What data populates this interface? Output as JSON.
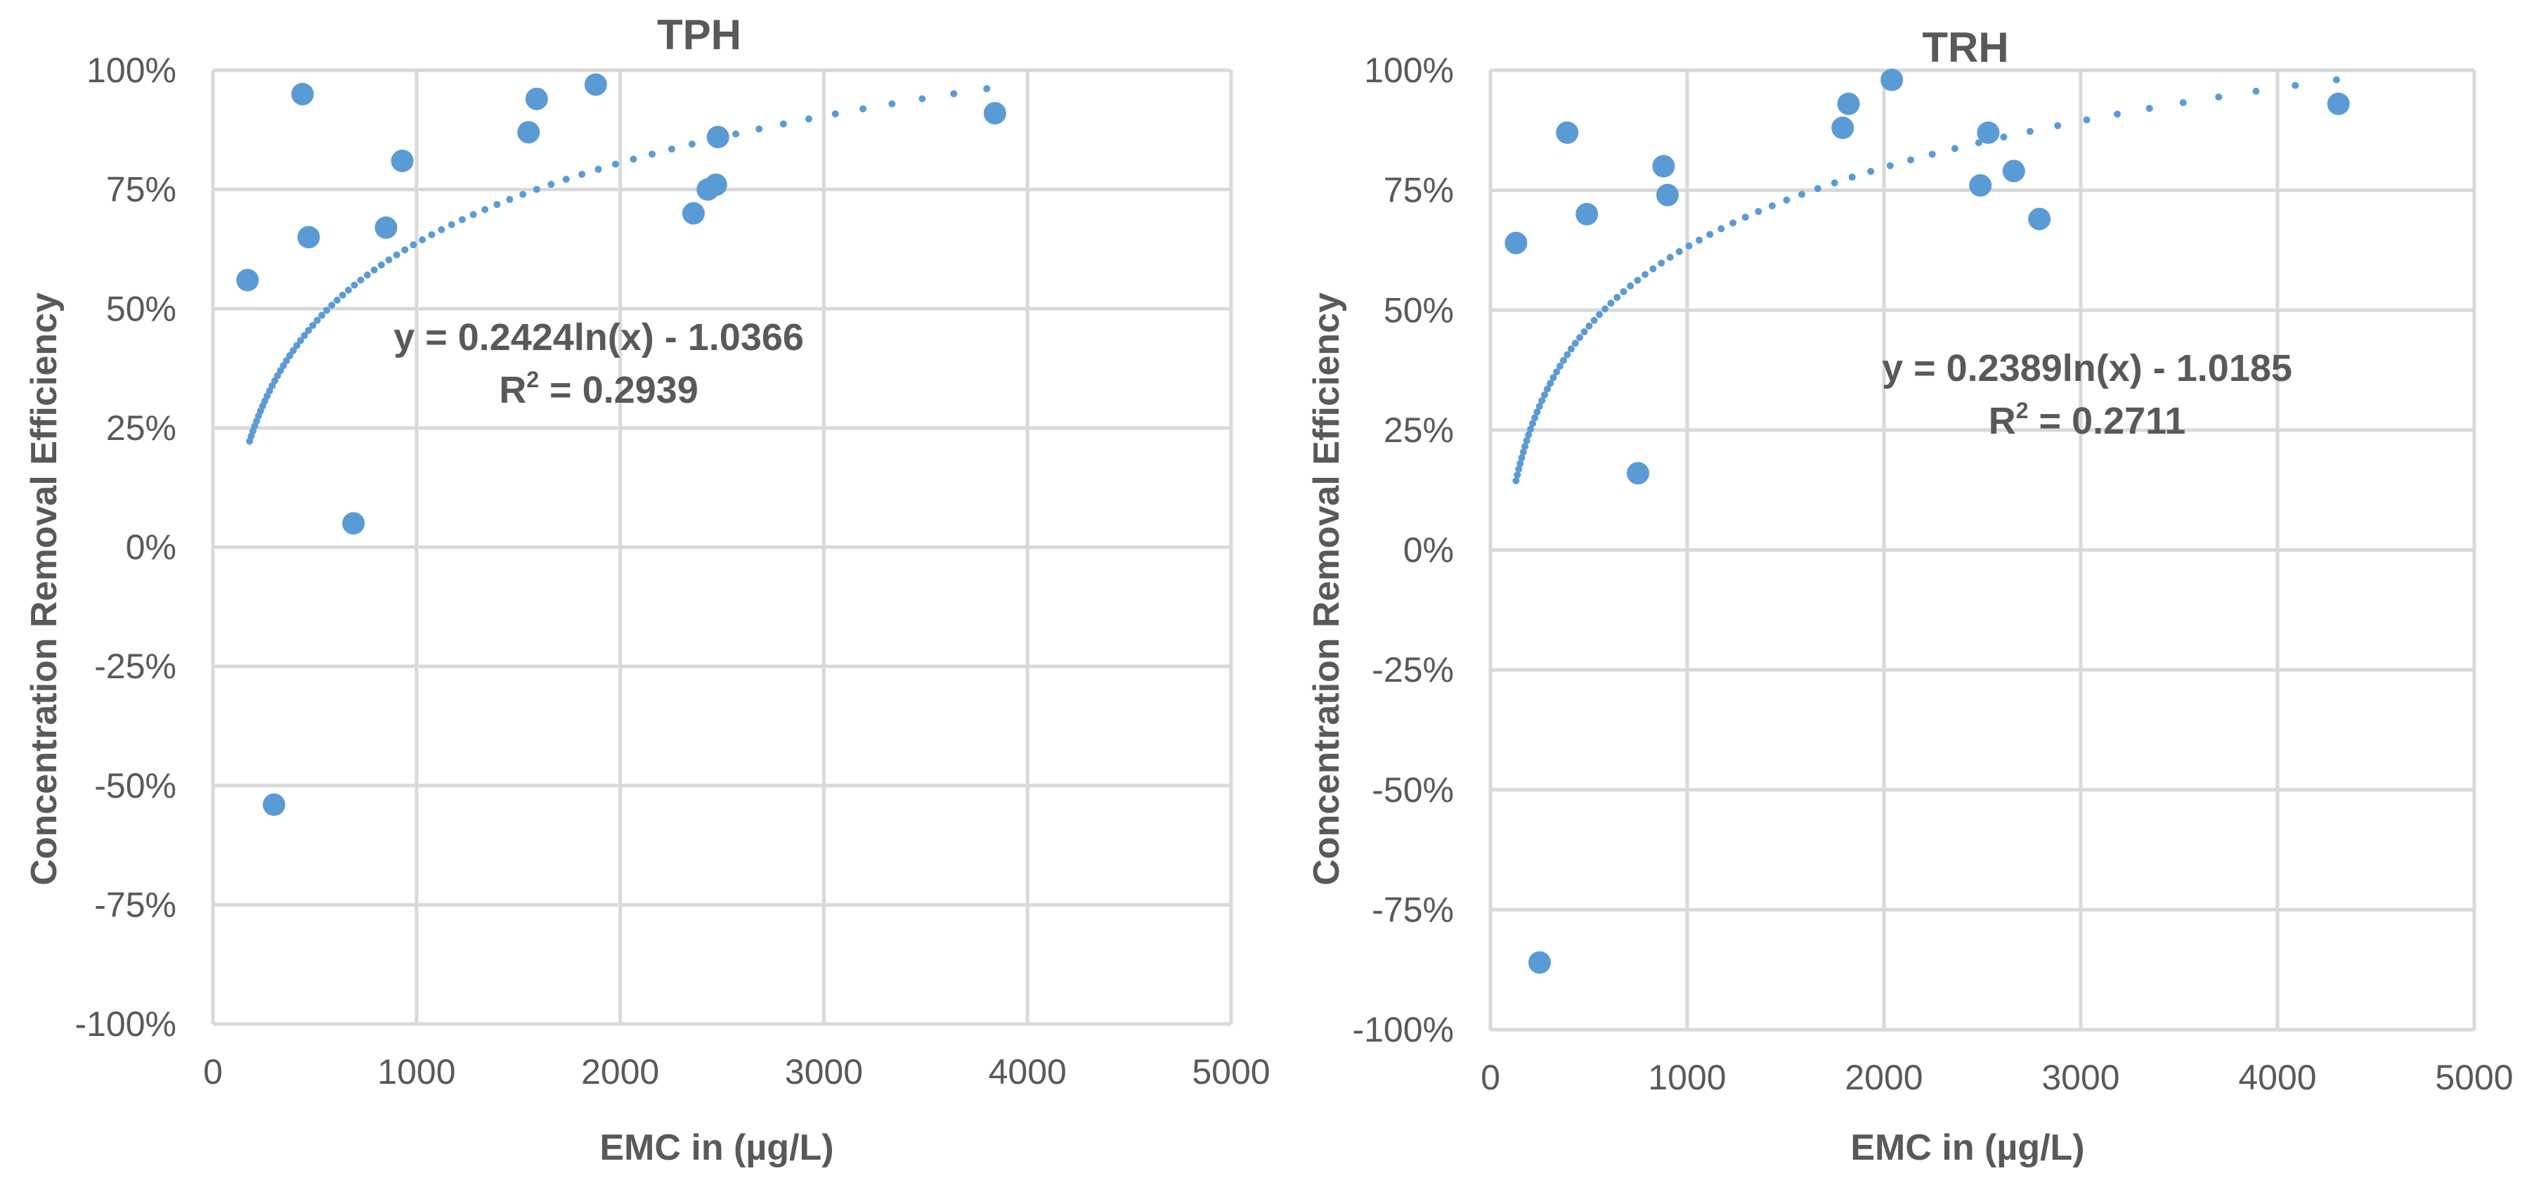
{
  "chart_data": [
    {
      "type": "scatter",
      "title": "TPH",
      "xlabel": "EMC in (µg/L)",
      "ylabel": "Concentration Removal Efficiency",
      "xlim": [
        0,
        5000
      ],
      "ylim": [
        -100,
        100
      ],
      "x_ticks": [
        "0",
        "1000",
        "2000",
        "3000",
        "4000",
        "5000"
      ],
      "y_ticks": [
        "100%",
        "75%",
        "50%",
        "25%",
        "0%",
        "-25%",
        "-50%",
        "-75%",
        "-100%"
      ],
      "grid": true,
      "points": [
        {
          "x": 170,
          "y": 56
        },
        {
          "x": 300,
          "y": -54
        },
        {
          "x": 440,
          "y": 95
        },
        {
          "x": 470,
          "y": 65
        },
        {
          "x": 690,
          "y": 5
        },
        {
          "x": 850,
          "y": 67
        },
        {
          "x": 930,
          "y": 81
        },
        {
          "x": 1550,
          "y": 87
        },
        {
          "x": 1590,
          "y": 94
        },
        {
          "x": 1880,
          "y": 97
        },
        {
          "x": 2360,
          "y": 70
        },
        {
          "x": 2430,
          "y": 75
        },
        {
          "x": 2470,
          "y": 76
        },
        {
          "x": 2480,
          "y": 86
        },
        {
          "x": 3840,
          "y": 91
        }
      ],
      "trendline": {
        "type": "logarithmic",
        "a": 0.2424,
        "b": -1.0366,
        "x_range": [
          180,
          3800
        ]
      },
      "equation": "y = 0.2424ln(x) - 1.0366",
      "r2_prefix": "R",
      "r2_sup": "2",
      "r2_value": " = 0.2939"
    },
    {
      "type": "scatter",
      "title": "TRH",
      "xlabel": "EMC in (µg/L)",
      "ylabel": "Concentration Removal Efficiency",
      "xlim": [
        0,
        5000
      ],
      "ylim": [
        -100,
        100
      ],
      "x_ticks": [
        "0",
        "1000",
        "2000",
        "3000",
        "4000",
        "5000"
      ],
      "y_ticks": [
        "100%",
        "75%",
        "50%",
        "25%",
        "0%",
        "-25%",
        "-50%",
        "-75%",
        "-100%"
      ],
      "grid": true,
      "points": [
        {
          "x": 130,
          "y": 64
        },
        {
          "x": 250,
          "y": -86
        },
        {
          "x": 390,
          "y": 87
        },
        {
          "x": 490,
          "y": 70
        },
        {
          "x": 750,
          "y": 16
        },
        {
          "x": 880,
          "y": 80
        },
        {
          "x": 900,
          "y": 74
        },
        {
          "x": 1790,
          "y": 88
        },
        {
          "x": 1820,
          "y": 93
        },
        {
          "x": 2040,
          "y": 98
        },
        {
          "x": 2490,
          "y": 76
        },
        {
          "x": 2530,
          "y": 87
        },
        {
          "x": 2660,
          "y": 79
        },
        {
          "x": 2790,
          "y": 69
        },
        {
          "x": 4310,
          "y": 93
        }
      ],
      "trendline": {
        "type": "logarithmic",
        "a": 0.2389,
        "b": -1.0185,
        "x_range": [
          130,
          4300
        ]
      },
      "equation": "y = 0.2389ln(x) - 1.0185",
      "r2_prefix": "R",
      "r2_sup": "2",
      "r2_value": " = 0.2711"
    }
  ]
}
